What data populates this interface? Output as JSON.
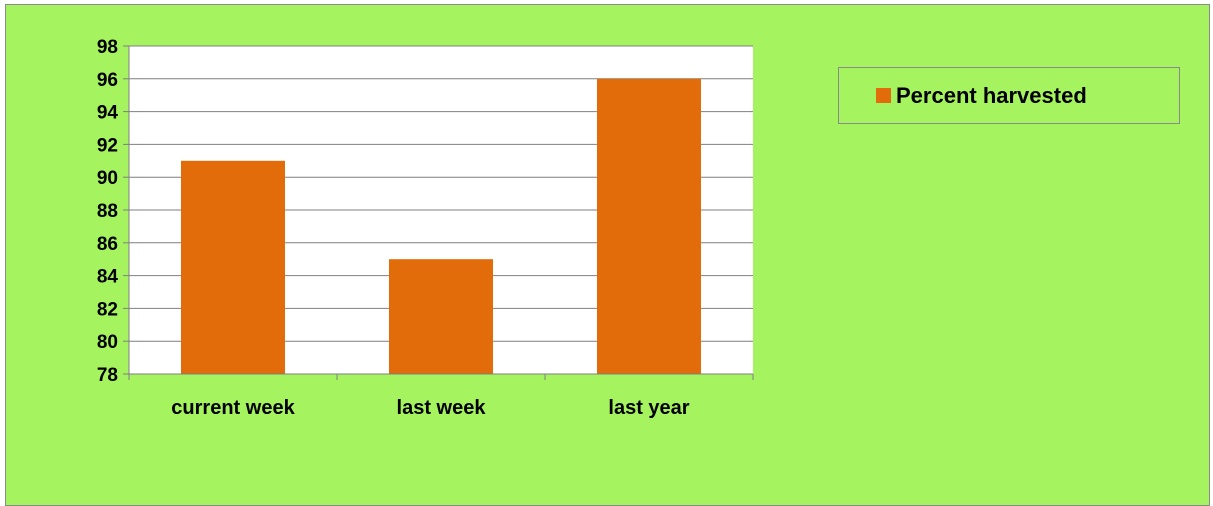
{
  "chart_data": {
    "type": "bar",
    "categories": [
      "current week",
      "last week",
      "last year"
    ],
    "series": [
      {
        "name": "Percent harvested",
        "values": [
          91,
          85,
          96
        ],
        "color": "#e26b0a"
      }
    ],
    "ylim": [
      78,
      98
    ],
    "yticks": [
      "78",
      "80",
      "82",
      "84",
      "86",
      "88",
      "90",
      "92",
      "94",
      "96",
      "98"
    ],
    "grid": true,
    "legend_position": "right",
    "title": "",
    "xlabel": "",
    "ylabel": ""
  },
  "colors": {
    "background": "#a5f35f",
    "plot_area": "#ffffff",
    "bar": "#e26b0a"
  }
}
